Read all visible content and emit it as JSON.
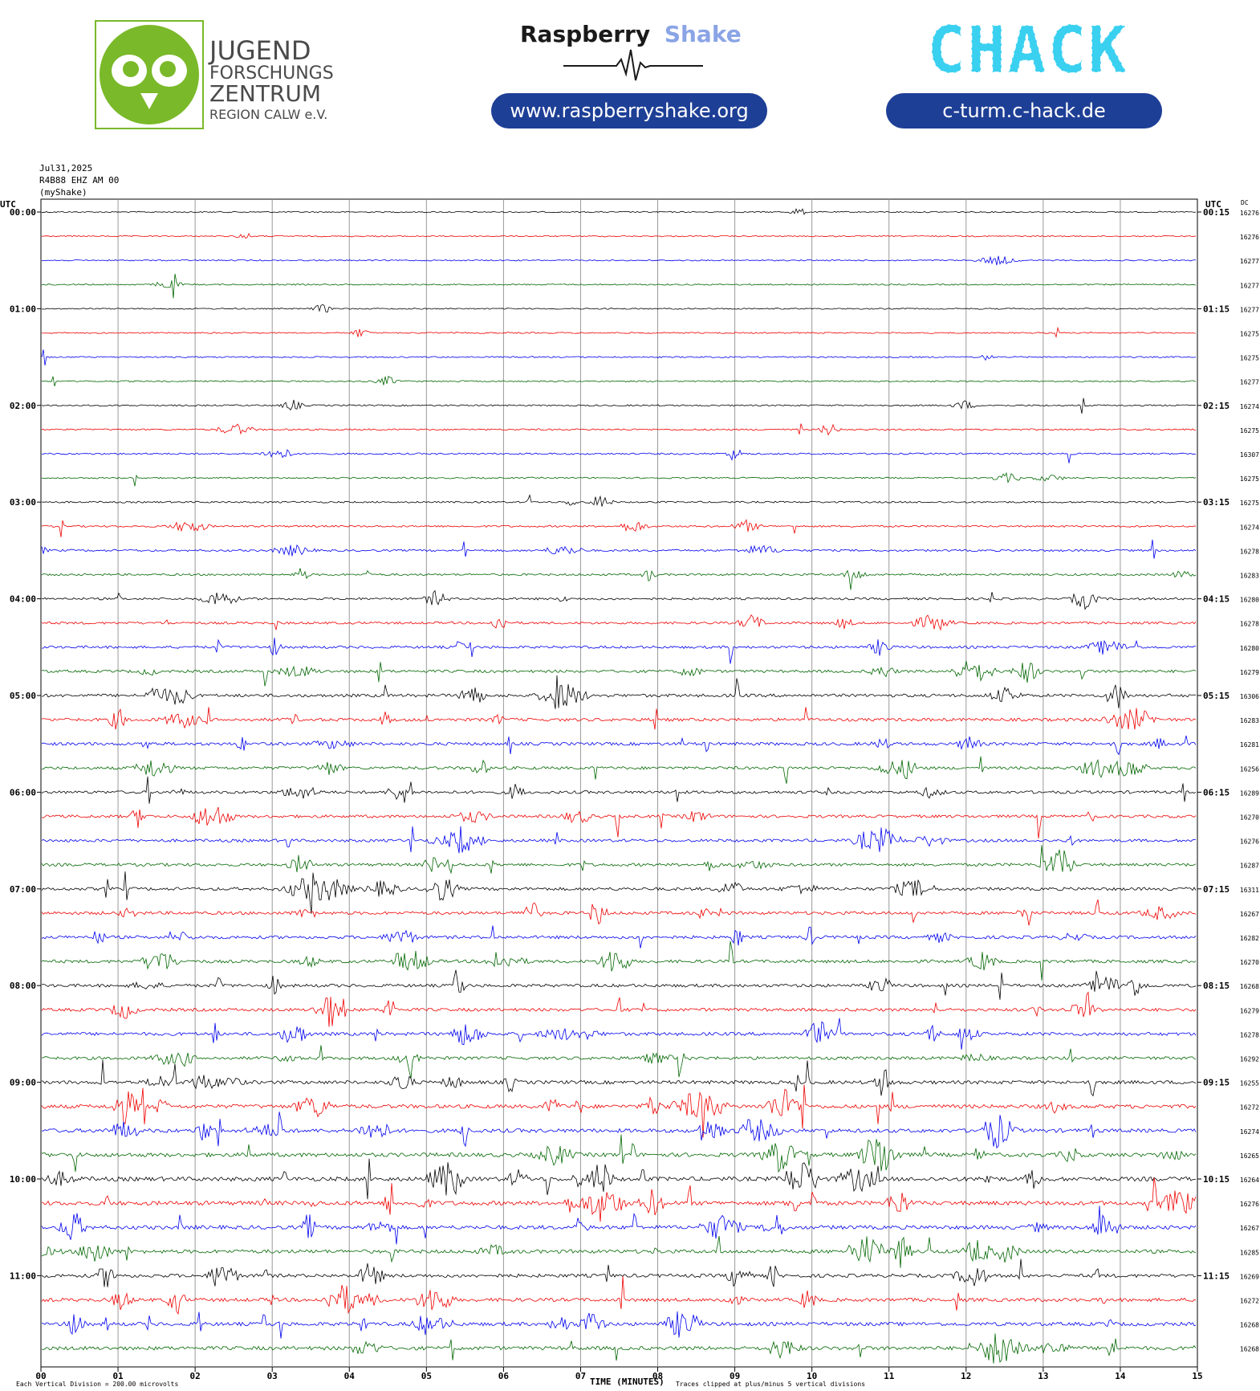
{
  "logos": {
    "jfz": {
      "line1": "JUGEND",
      "line2": "FORSCHUNGS",
      "line3": "ZENTRUM",
      "line4": "REGION CALW e.V.",
      "color": "#7ab929"
    },
    "rs": {
      "word1": "Raspberry",
      "word2": "Shake",
      "pill": "www.raspberryshake.org",
      "color1": "#1a1a1a",
      "color2": "#8aa4e6"
    },
    "chack": {
      "text": "CHACK",
      "pill": "c-turm.c-hack.de",
      "colorC": "#78c83c",
      "colorText": "#3ad0f0"
    },
    "pill_color": "#1e3f96"
  },
  "meta": {
    "date": "Jul31,2025",
    "station": "R4B88 EHZ AM 00",
    "source": "(myShake)"
  },
  "chart_data": {
    "type": "line",
    "title": "",
    "xlabel": "TIME (MINUTES)",
    "x_ticks": [
      "00",
      "01",
      "02",
      "03",
      "04",
      "05",
      "06",
      "07",
      "08",
      "09",
      "10",
      "11",
      "12",
      "13",
      "14",
      "15"
    ],
    "xlim": [
      0,
      15
    ],
    "left_axis_label": "UTC",
    "right_axis_label": "UTC",
    "dc_label": "DC",
    "trace_colors": [
      "#000000",
      "#ee0000",
      "#0000ee",
      "#006600"
    ],
    "rows": [
      {
        "left": "00:00",
        "right": "00:15",
        "dc": "16276"
      },
      {
        "left": "",
        "right": "",
        "dc": "16276"
      },
      {
        "left": "",
        "right": "",
        "dc": "16277"
      },
      {
        "left": "",
        "right": "",
        "dc": "16277"
      },
      {
        "left": "01:00",
        "right": "01:15",
        "dc": "16277"
      },
      {
        "left": "",
        "right": "",
        "dc": "16275"
      },
      {
        "left": "",
        "right": "",
        "dc": "16275"
      },
      {
        "left": "",
        "right": "",
        "dc": "16277"
      },
      {
        "left": "02:00",
        "right": "02:15",
        "dc": "16274"
      },
      {
        "left": "",
        "right": "",
        "dc": "16275"
      },
      {
        "left": "",
        "right": "",
        "dc": "16307"
      },
      {
        "left": "",
        "right": "",
        "dc": "16275"
      },
      {
        "left": "03:00",
        "right": "03:15",
        "dc": "16275"
      },
      {
        "left": "",
        "right": "",
        "dc": "16274"
      },
      {
        "left": "",
        "right": "",
        "dc": "16278"
      },
      {
        "left": "",
        "right": "",
        "dc": "16283"
      },
      {
        "left": "04:00",
        "right": "04:15",
        "dc": "16280"
      },
      {
        "left": "",
        "right": "",
        "dc": "16278"
      },
      {
        "left": "",
        "right": "",
        "dc": "16280"
      },
      {
        "left": "",
        "right": "",
        "dc": "16279"
      },
      {
        "left": "05:00",
        "right": "05:15",
        "dc": "16306"
      },
      {
        "left": "",
        "right": "",
        "dc": "16283"
      },
      {
        "left": "",
        "right": "",
        "dc": "16281"
      },
      {
        "left": "",
        "right": "",
        "dc": "16256"
      },
      {
        "left": "06:00",
        "right": "06:15",
        "dc": "16289"
      },
      {
        "left": "",
        "right": "",
        "dc": "16270"
      },
      {
        "left": "",
        "right": "",
        "dc": "16276"
      },
      {
        "left": "",
        "right": "",
        "dc": "16287"
      },
      {
        "left": "07:00",
        "right": "07:15",
        "dc": "16311"
      },
      {
        "left": "",
        "right": "",
        "dc": "16267"
      },
      {
        "left": "",
        "right": "",
        "dc": "16282"
      },
      {
        "left": "",
        "right": "",
        "dc": "16270"
      },
      {
        "left": "08:00",
        "right": "08:15",
        "dc": "16268"
      },
      {
        "left": "",
        "right": "",
        "dc": "16279"
      },
      {
        "left": "",
        "right": "",
        "dc": "16278"
      },
      {
        "left": "",
        "right": "",
        "dc": "16292"
      },
      {
        "left": "09:00",
        "right": "09:15",
        "dc": "16255"
      },
      {
        "left": "",
        "right": "",
        "dc": "16272"
      },
      {
        "left": "",
        "right": "",
        "dc": "16274"
      },
      {
        "left": "",
        "right": "",
        "dc": "16265"
      },
      {
        "left": "10:00",
        "right": "10:15",
        "dc": "16264"
      },
      {
        "left": "",
        "right": "",
        "dc": "16276"
      },
      {
        "left": "",
        "right": "",
        "dc": "16267"
      },
      {
        "left": "",
        "right": "",
        "dc": "16285"
      },
      {
        "left": "11:00",
        "right": "11:15",
        "dc": "16269"
      },
      {
        "left": "",
        "right": "",
        "dc": "16272"
      },
      {
        "left": "",
        "right": "",
        "dc": "16268"
      },
      {
        "left": "",
        "right": "",
        "dc": "16268"
      }
    ],
    "activity": [
      0.08,
      0.08,
      0.08,
      0.1,
      0.08,
      0.1,
      0.12,
      0.1,
      0.15,
      0.18,
      0.2,
      0.15,
      0.2,
      0.25,
      0.3,
      0.3,
      0.35,
      0.4,
      0.45,
      0.5,
      0.6,
      0.6,
      0.6,
      0.55,
      0.55,
      0.55,
      0.55,
      0.55,
      0.6,
      0.6,
      0.6,
      0.6,
      0.6,
      0.6,
      0.65,
      0.6,
      0.7,
      0.8,
      0.8,
      0.85,
      0.9,
      0.9,
      0.8,
      0.75,
      0.7,
      0.7,
      0.75,
      0.75
    ],
    "footer_left": "Each Vertical Division =  200.00 microvolts",
    "footer_right": "Traces clipped at plus/minus 5 vertical divisions"
  }
}
